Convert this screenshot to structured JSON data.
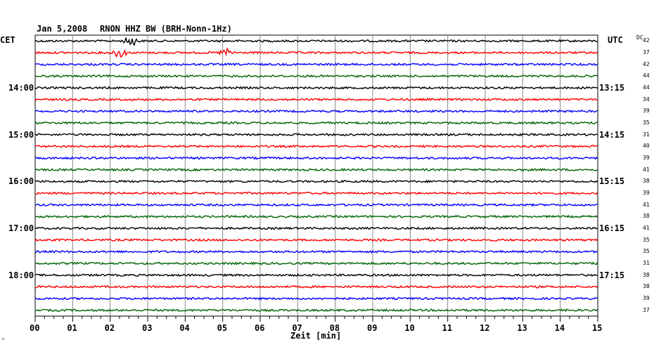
{
  "header": {
    "date": "Jan 5,2008",
    "station": "RNON HHZ BW (BRH-Nonn-1Hz)"
  },
  "left_timezone": "CET",
  "right_timezone": "UTC",
  "dc_label": "DC",
  "xlabel": "Zeit [min]",
  "corner_mark": "^",
  "chart_data": {
    "type": "line",
    "title": "RNON HHZ BW (BRH-Nonn-1Hz)",
    "xlabel": "Zeit [min]",
    "xlim": [
      0,
      15
    ],
    "x_ticks": [
      "00",
      "01",
      "02",
      "03",
      "04",
      "05",
      "06",
      "07",
      "08",
      "09",
      "10",
      "11",
      "12",
      "13",
      "14",
      "15"
    ],
    "left_hour_labels": [
      "14:00",
      "15:00",
      "16:00",
      "17:00",
      "18:00"
    ],
    "right_hour_labels": [
      "13:15",
      "14:15",
      "15:15",
      "16:15",
      "17:15"
    ],
    "trace_colors": [
      "#000000",
      "#ff0000",
      "#0000ff",
      "#006400"
    ],
    "dc_offsets": [
      42,
      37,
      42,
      44,
      44,
      34,
      39,
      35,
      31,
      40,
      39,
      41,
      38,
      39,
      41,
      38,
      41,
      35,
      35,
      31,
      38,
      38,
      39,
      37
    ],
    "events": [
      {
        "trace": 1,
        "minute": 2.55,
        "amplitude": "large"
      },
      {
        "trace": 2,
        "minute": 2.25,
        "amplitude": "large"
      },
      {
        "trace": 2,
        "minute": 5.1,
        "amplitude": "medium"
      }
    ],
    "grid": true
  }
}
